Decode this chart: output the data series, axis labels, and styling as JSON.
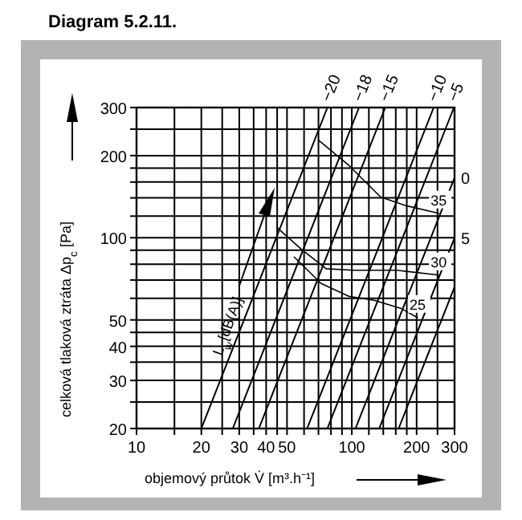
{
  "chart_data": {
    "type": "line",
    "title": "Diagram 5.2.11.",
    "xlabel": "objemový průtok V̇ [m³.h⁻¹]",
    "ylabel": "celková tlaková ztráta Δp$_{c}$ [Pa]",
    "log": "xy",
    "grid": true,
    "marker": "none",
    "line_style": "solid",
    "xlim": [
      10,
      300
    ],
    "ylim": [
      20,
      300
    ],
    "xticks": [
      10,
      {
        "value": 15,
        "label": null
      },
      20,
      {
        "value": 25,
        "label": null
      },
      30,
      {
        "value": 35,
        "label": null
      },
      40,
      {
        "value": 45,
        "label": null
      },
      50,
      {
        "value": 60,
        "label": null
      },
      {
        "value": 70,
        "label": null
      },
      {
        "value": 80,
        "label": null
      },
      {
        "value": 90,
        "label": null
      },
      100,
      {
        "value": 120,
        "label": null
      },
      {
        "value": 140,
        "label": null
      },
      {
        "value": 160,
        "label": null
      },
      {
        "value": 180,
        "label": null
      },
      200,
      {
        "value": 250,
        "label": null
      },
      300
    ],
    "yticks": [
      20,
      {
        "value": 25,
        "label": null
      },
      30,
      {
        "value": 35,
        "label": null
      },
      40,
      {
        "value": 45,
        "label": null
      },
      50,
      {
        "value": 60,
        "label": null
      },
      {
        "value": 70,
        "label": null
      },
      {
        "value": 80,
        "label": null
      },
      {
        "value": 90,
        "label": null
      },
      100,
      {
        "value": 120,
        "label": null
      },
      {
        "value": 140,
        "label": null
      },
      {
        "value": 160,
        "label": null
      },
      {
        "value": 180,
        "label": null
      },
      200,
      {
        "value": 250,
        "label": null
      },
      300
    ],
    "annotations": [
      "L$_{w}$[dB(A)]"
    ],
    "series": [
      {
        "name": "−20",
        "color": "#000000",
        "x": [
          20,
          77
        ],
        "values": [
          20,
          300
        ]
      },
      {
        "name": "−18",
        "color": "#000000",
        "x": [
          28,
          108
        ],
        "values": [
          20,
          300
        ]
      },
      {
        "name": "−15",
        "color": "#000000",
        "x": [
          37,
          143
        ],
        "values": [
          20,
          300
        ]
      },
      {
        "name": "−10",
        "color": "#000000",
        "x": [
          62,
          240
        ],
        "values": [
          20,
          300
        ]
      },
      {
        "name": "−5",
        "color": "#000000",
        "x": [
          77,
          298
        ],
        "values": [
          20,
          300
        ]
      },
      {
        "name": "0",
        "color": "#000000",
        "x": [
          104,
          300
        ],
        "values": [
          20,
          166
        ]
      },
      {
        "name": "5",
        "color": "#000000",
        "x": [
          134,
          300
        ],
        "values": [
          20,
          100
        ]
      },
      {
        "color": "#000000",
        "x": [
          165,
          300
        ],
        "values": [
          20,
          66
        ]
      },
      {
        "name": "35",
        "color": "#000000",
        "x": [
          70,
          97,
          136,
          179,
          253
        ],
        "values": [
          228,
          184,
          141,
          131,
          123
        ]
      },
      {
        "name": "30",
        "color": "#000000",
        "x": [
          45,
          58,
          76,
          102,
          162,
          253
        ],
        "values": [
          109,
          91,
          77,
          76,
          76,
          73
        ]
      },
      {
        "name": "25",
        "color": "#000000",
        "x": [
          54,
          72,
          97,
          127,
          170,
          202
        ],
        "values": [
          85,
          68,
          61,
          59,
          55,
          51
        ]
      }
    ]
  }
}
